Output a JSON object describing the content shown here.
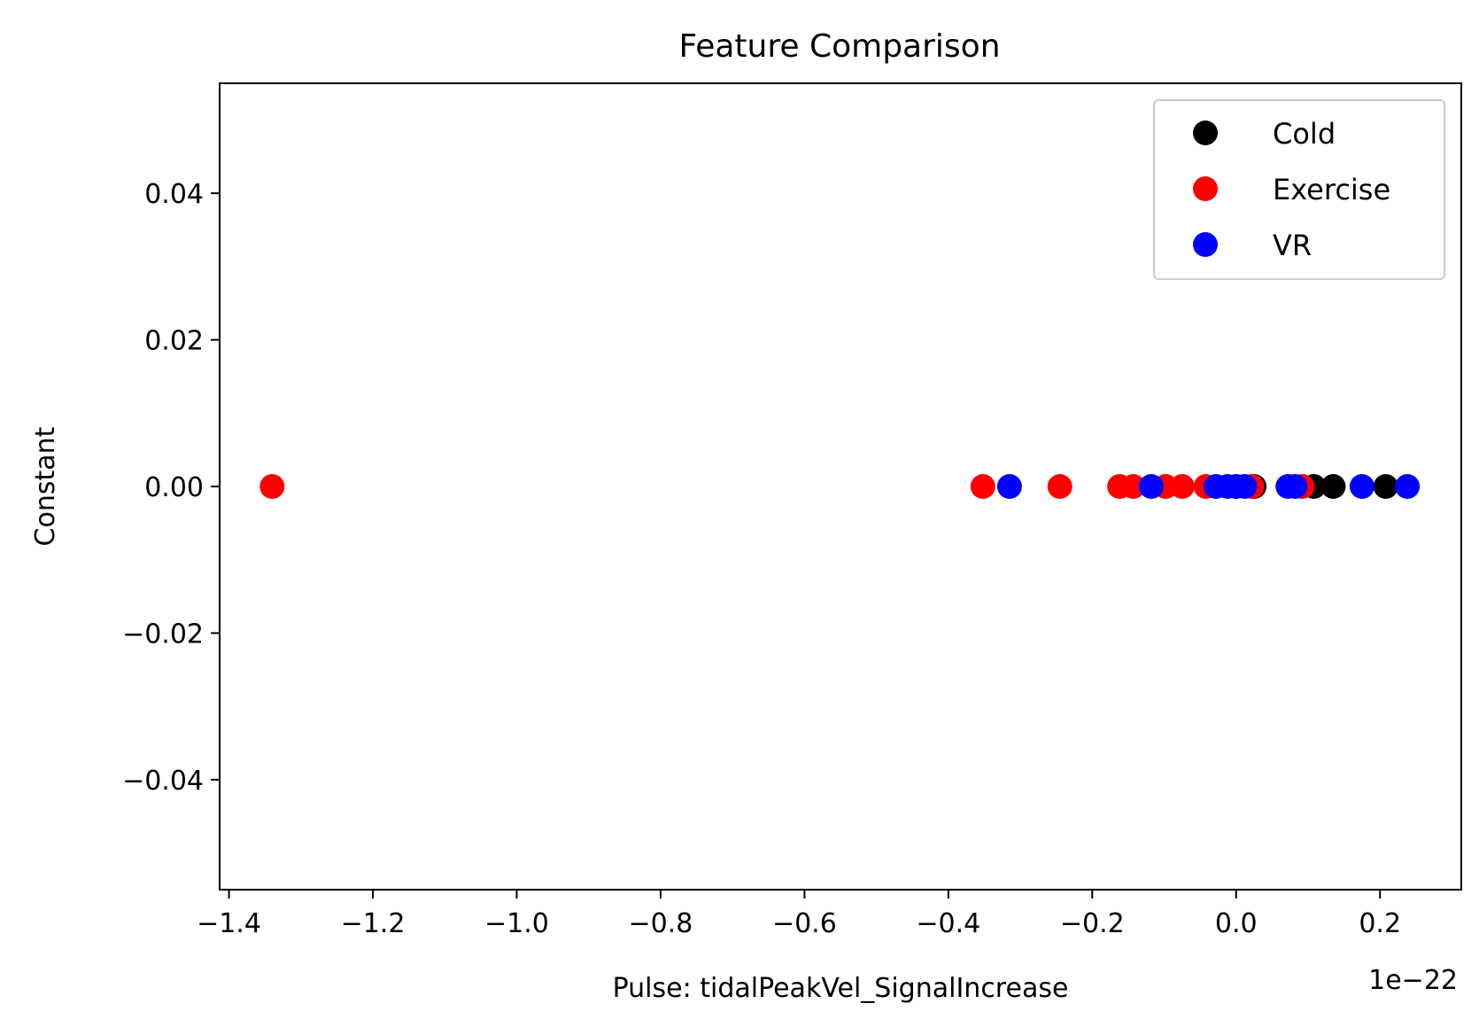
{
  "chart_data": {
    "type": "scatter",
    "title": "Feature Comparison",
    "xlabel": "Pulse: tidalPeakVel_SignalIncrease",
    "ylabel": "Constant",
    "x_offset_label": "1e−22",
    "xlim": [
      -1.413,
      0.313
    ],
    "ylim": [
      -0.055,
      0.055
    ],
    "x_ticks": [
      -1.4,
      -1.2,
      -1.0,
      -0.8,
      -0.6,
      -0.4,
      -0.2,
      0.0,
      0.2
    ],
    "x_tick_labels": [
      "−1.4",
      "−1.2",
      "−1.0",
      "−0.8",
      "−0.6",
      "−0.4",
      "−0.2",
      "0.0",
      "0.2"
    ],
    "y_ticks": [
      0.04,
      0.02,
      0.0,
      -0.02,
      -0.04
    ],
    "y_tick_labels": [
      "0.04",
      "0.02",
      "0.00",
      "−0.02",
      "−0.04"
    ],
    "grid": false,
    "legend_position": "top-right",
    "series": [
      {
        "name": "Cold",
        "color": "#000000",
        "x": [
          0.025,
          0.108,
          0.135,
          0.208
        ],
        "y": [
          0,
          0,
          0,
          0
        ]
      },
      {
        "name": "Exercise",
        "color": "#ff0000",
        "x": [
          -1.34,
          -0.352,
          -0.245,
          -0.162,
          -0.143,
          -0.098,
          -0.075,
          -0.042,
          0.022,
          0.092
        ],
        "y": [
          0,
          0,
          0,
          0,
          0,
          0,
          0,
          0,
          0,
          0
        ]
      },
      {
        "name": "VR",
        "color": "#0000ff",
        "x": [
          -0.315,
          -0.118,
          -0.028,
          -0.012,
          0.0,
          0.012,
          0.072,
          0.082,
          0.175,
          0.238
        ],
        "y": [
          0,
          0,
          0,
          0,
          0,
          0,
          0,
          0,
          0,
          0
        ]
      }
    ]
  }
}
